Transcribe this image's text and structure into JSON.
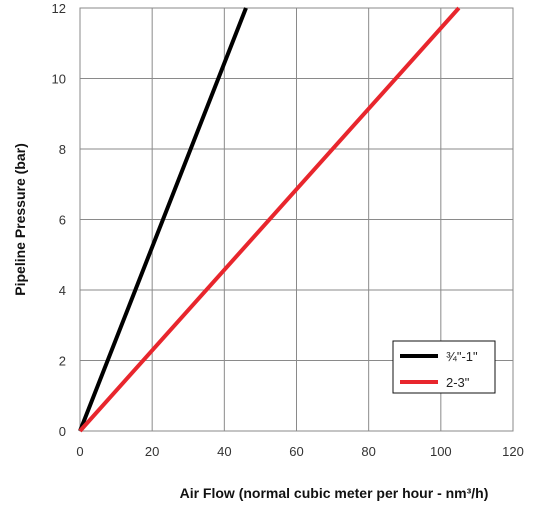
{
  "chart_data": {
    "type": "line",
    "xlabel": "Air Flow (normal cubic meter per hour - nm³/h)",
    "ylabel": "Pipeline Pressure (bar)",
    "xlim": [
      0,
      120
    ],
    "ylim": [
      0,
      12
    ],
    "xticks": [
      0,
      20,
      40,
      60,
      80,
      100,
      120
    ],
    "yticks": [
      0,
      2,
      4,
      6,
      8,
      10,
      12
    ],
    "grid": true,
    "legend_position": "bottom-right",
    "series": [
      {
        "name": "¾\"-1\"",
        "color": "#000000",
        "x": [
          0,
          46
        ],
        "y": [
          0,
          12
        ]
      },
      {
        "name": "2-3\"",
        "color": "#e8262d",
        "x": [
          0,
          105
        ],
        "y": [
          0,
          12
        ]
      }
    ]
  }
}
